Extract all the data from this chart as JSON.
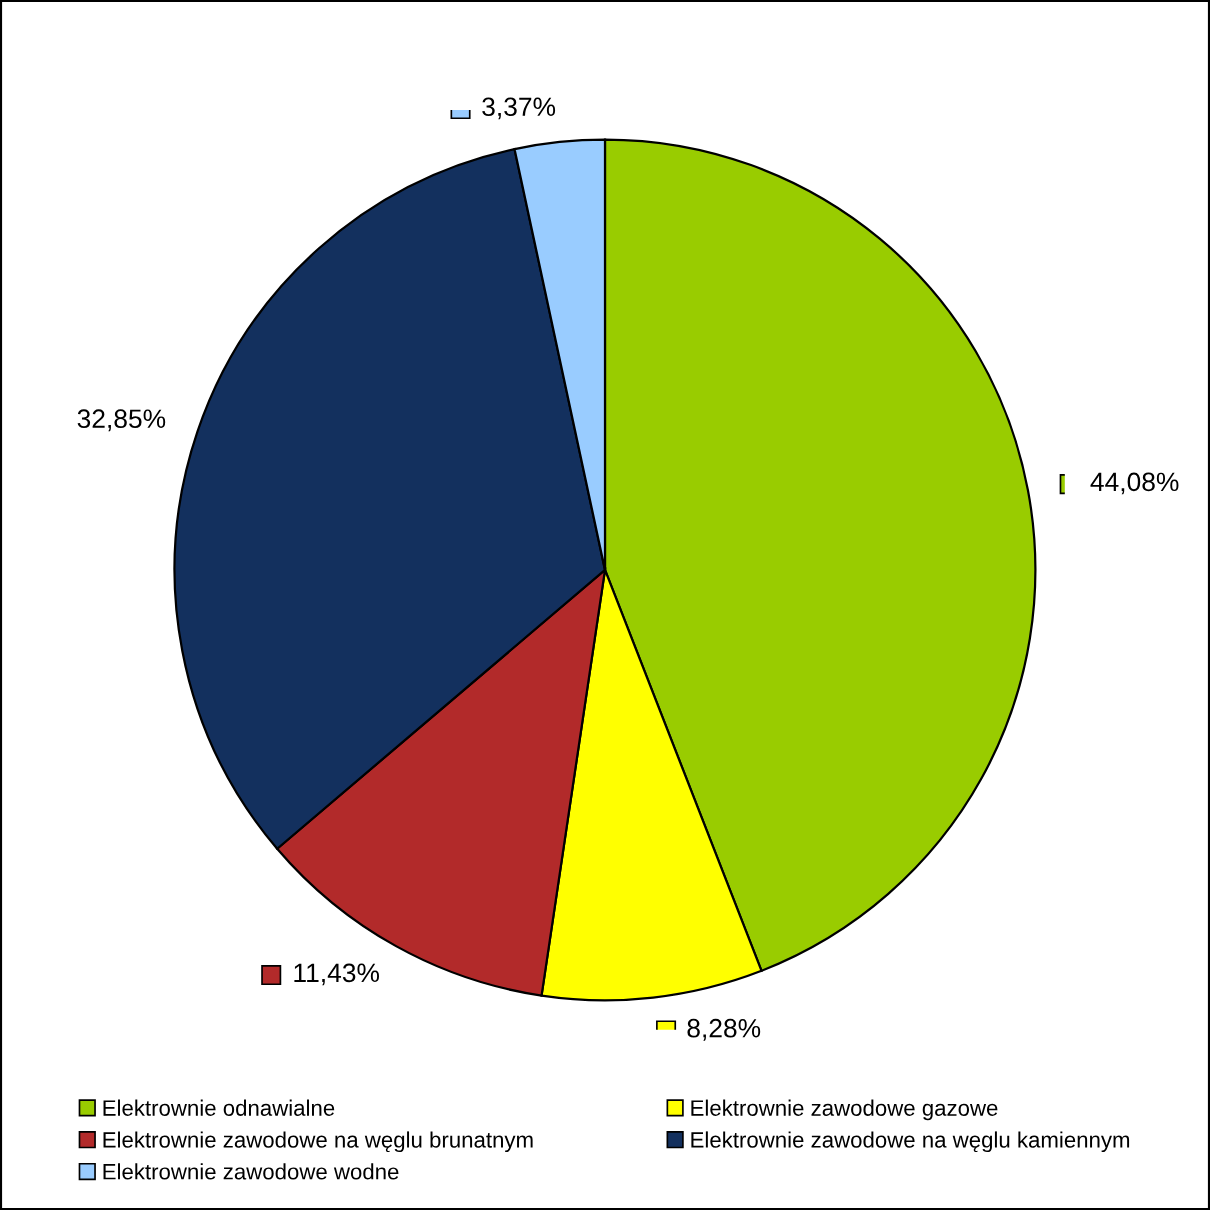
{
  "chart_data": {
    "type": "pie",
    "categories": [
      "Elektrownie odnawialne",
      "Elektrownie zawodowe gazowe",
      "Elektrownie zawodowe na węglu brunatnym",
      "Elektrownie zawodowe na węglu kamiennym",
      "Elektrownie zawodowe wodne"
    ],
    "values": [
      44.08,
      8.28,
      11.43,
      32.85,
      3.37
    ],
    "colors": [
      "#99cc00",
      "#ffff00",
      "#b22a2a",
      "#13305e",
      "#99ccff"
    ],
    "value_labels": [
      "44,08%",
      "8,28%",
      "11,43%",
      "32,85%",
      "3,37%"
    ],
    "legend": "bottom"
  }
}
